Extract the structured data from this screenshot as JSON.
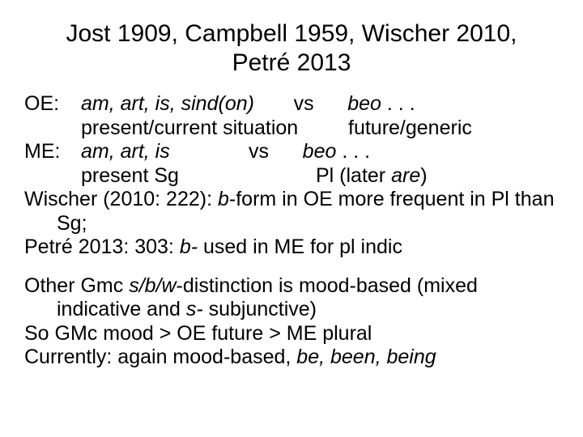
{
  "title_line1": "Jost 1909, Campbell 1959,  Wischer 2010,",
  "title_line2": "Petré 2013",
  "oe_label": "OE:",
  "oe_forms": "am, art, is, sind(on)",
  "oe_vs": "       vs      ",
  "oe_beo": "beo",
  "oe_dots": " . . .",
  "oe_left": "present/current situation",
  "oe_right": "future/generic",
  "me_label": "ME:",
  "me_forms": "am, art, is",
  "me_vs": "              vs      ",
  "me_beo": "beo",
  "me_dots": " . . .",
  "me_left": "present Sg",
  "me_right_pre": "Pl (later ",
  "me_right_it": "are",
  "me_right_post": ")",
  "wischer_a": "Wischer (2010: 222): ",
  "wischer_b": "b",
  "wischer_c": "-form in OE more frequent in Pl than Sg;",
  "petre_a": "Petré 2013: 303: ",
  "petre_b": "b-",
  "petre_c": " used in ME for pl indic",
  "other_a": "Other Gmc ",
  "other_b": "s/b/w",
  "other_c": "-distinction is mood-based (mixed indicative and ",
  "other_d": "s-",
  "other_e": " subjunctive)",
  "so_line": "So GMc mood > OE future > ME plural",
  "curr_a": "Currently: again mood-based, ",
  "curr_b": "be, been, being"
}
